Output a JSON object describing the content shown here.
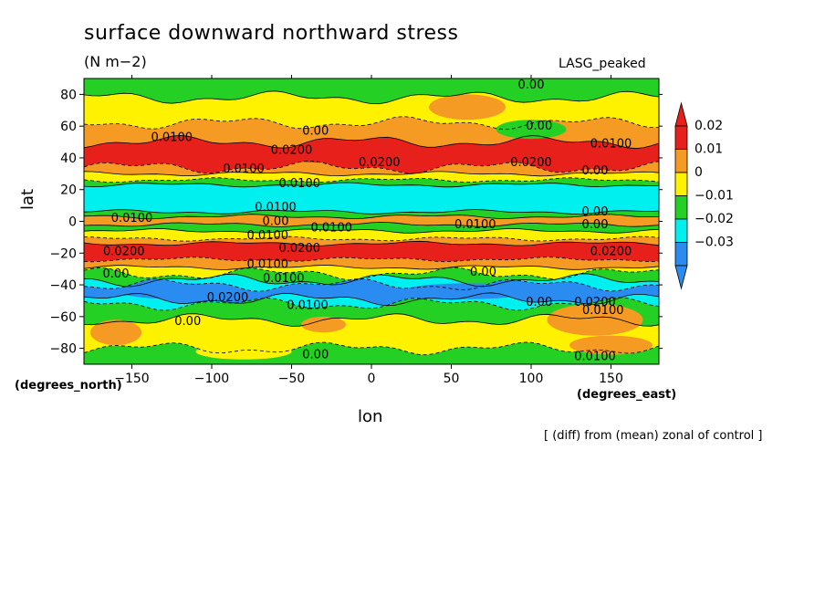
{
  "title": "surface downward northward stress",
  "units": "(N m−2)",
  "model": "LASG_peaked",
  "y_units_label": "(degrees_north)",
  "x_units_label": "(degrees_east)",
  "footnote": "[ (diff) from (mean) zonal of control ]",
  "colors": {
    "red": "#e8201c",
    "orange": "#f59a23",
    "yellow": "#fef200",
    "green": "#23d023",
    "cyan": "#00f0f0",
    "blue": "#2a8cf0"
  },
  "chart_data": {
    "type": "heatmap",
    "xlabel": "lon",
    "ylabel": "lat",
    "xlim": [
      -180,
      180
    ],
    "ylim": [
      -90,
      90
    ],
    "x_ticks": [
      {
        "value": -150,
        "label": "−150"
      },
      {
        "value": -100,
        "label": "−100"
      },
      {
        "value": -50,
        "label": "−50"
      },
      {
        "value": 0,
        "label": "0"
      },
      {
        "value": 50,
        "label": "50"
      },
      {
        "value": 100,
        "label": "100"
      },
      {
        "value": 150,
        "label": "150"
      }
    ],
    "y_ticks": [
      {
        "value": 80,
        "label": "80"
      },
      {
        "value": 60,
        "label": "60"
      },
      {
        "value": 40,
        "label": "40"
      },
      {
        "value": 20,
        "label": "20"
      },
      {
        "value": 0,
        "label": "0"
      },
      {
        "value": -20,
        "label": "−20"
      },
      {
        "value": -40,
        "label": "−40"
      },
      {
        "value": -60,
        "label": "−60"
      },
      {
        "value": -80,
        "label": "−80"
      }
    ],
    "colorbar": {
      "labels": [
        "0.02",
        "0.01",
        "0",
        "−0.01",
        "−0.02",
        "−0.03"
      ],
      "bins": [
        "red",
        "orange",
        "yellow",
        "green",
        "cyan",
        "blue"
      ]
    },
    "zonal_bands": [
      {
        "lat_from": 90,
        "lat_to": 78,
        "color": "green"
      },
      {
        "lat_from": 78,
        "lat_to": 62,
        "color": "yellow"
      },
      {
        "lat_from": 62,
        "lat_to": 50,
        "color": "orange"
      },
      {
        "lat_from": 50,
        "lat_to": 34,
        "color": "red"
      },
      {
        "lat_from": 34,
        "lat_to": 30,
        "color": "orange"
      },
      {
        "lat_from": 30,
        "lat_to": 26,
        "color": "yellow"
      },
      {
        "lat_from": 26,
        "lat_to": 23,
        "color": "green"
      },
      {
        "lat_from": 23,
        "lat_to": 6,
        "color": "cyan"
      },
      {
        "lat_from": 6,
        "lat_to": 3,
        "color": "green"
      },
      {
        "lat_from": 3,
        "lat_to": -2,
        "color": "orange"
      },
      {
        "lat_from": -2,
        "lat_to": -6,
        "color": "green"
      },
      {
        "lat_from": -6,
        "lat_to": -11,
        "color": "yellow"
      },
      {
        "lat_from": -11,
        "lat_to": -14,
        "color": "orange"
      },
      {
        "lat_from": -14,
        "lat_to": -24,
        "color": "red"
      },
      {
        "lat_from": -24,
        "lat_to": -29,
        "color": "orange"
      },
      {
        "lat_from": -29,
        "lat_to": -33,
        "color": "yellow"
      },
      {
        "lat_from": -33,
        "lat_to": -37,
        "color": "green"
      },
      {
        "lat_from": -37,
        "lat_to": -40,
        "color": "cyan"
      },
      {
        "lat_from": -40,
        "lat_to": -49,
        "color": "blue"
      },
      {
        "lat_from": -49,
        "lat_to": -52,
        "color": "cyan"
      },
      {
        "lat_from": -52,
        "lat_to": -62,
        "color": "green"
      },
      {
        "lat_from": -62,
        "lat_to": -80,
        "color": "yellow"
      },
      {
        "lat_from": -80,
        "lat_to": -90,
        "color": "green"
      }
    ],
    "contour_labels": [
      {
        "lon": 100,
        "lat": 86,
        "text": "0.00"
      },
      {
        "lon": -125,
        "lat": 53,
        "text": "0.0100"
      },
      {
        "lon": -35,
        "lat": 57,
        "text": "0.00"
      },
      {
        "lon": 105,
        "lat": 60,
        "text": "0.00"
      },
      {
        "lon": -50,
        "lat": 45,
        "text": "0.0200"
      },
      {
        "lon": 150,
        "lat": 49,
        "text": "0.0100"
      },
      {
        "lon": -80,
        "lat": 33,
        "text": "0.0100"
      },
      {
        "lon": 5,
        "lat": 37,
        "text": "0.0200"
      },
      {
        "lon": 100,
        "lat": 37,
        "text": "0.0200"
      },
      {
        "lon": 140,
        "lat": 32,
        "text": "0.00"
      },
      {
        "lon": -45,
        "lat": 24,
        "text": "0.0100"
      },
      {
        "lon": -60,
        "lat": 9,
        "text": "0.0100"
      },
      {
        "lon": -150,
        "lat": 2,
        "text": "0.0100"
      },
      {
        "lon": -60,
        "lat": 0,
        "text": "0.00"
      },
      {
        "lon": -25,
        "lat": -4,
        "text": "0.0100"
      },
      {
        "lon": 65,
        "lat": -2,
        "text": "0.0100"
      },
      {
        "lon": 140,
        "lat": 6,
        "text": "0.00"
      },
      {
        "lon": 140,
        "lat": -2,
        "text": "0.00"
      },
      {
        "lon": -65,
        "lat": -9,
        "text": "0.0100"
      },
      {
        "lon": -155,
        "lat": -19,
        "text": "0.0200"
      },
      {
        "lon": -45,
        "lat": -17,
        "text": "0.0200"
      },
      {
        "lon": 150,
        "lat": -19,
        "text": "0.0200"
      },
      {
        "lon": -65,
        "lat": -27,
        "text": "0.0100"
      },
      {
        "lon": -160,
        "lat": -33,
        "text": "0.00"
      },
      {
        "lon": -55,
        "lat": -36,
        "text": "0.0100"
      },
      {
        "lon": 70,
        "lat": -32,
        "text": "0.00"
      },
      {
        "lon": -90,
        "lat": -48,
        "text": "0.0200"
      },
      {
        "lon": -40,
        "lat": -53,
        "text": "0.0100"
      },
      {
        "lon": 105,
        "lat": -51,
        "text": "0.00"
      },
      {
        "lon": 140,
        "lat": -51,
        "text": "0.0200"
      },
      {
        "lon": 145,
        "lat": -56,
        "text": "0.0100"
      },
      {
        "lon": -115,
        "lat": -63,
        "text": "0.00"
      },
      {
        "lon": -35,
        "lat": -84,
        "text": "0.00"
      },
      {
        "lon": 140,
        "lat": -85,
        "text": "0.0100"
      }
    ]
  }
}
